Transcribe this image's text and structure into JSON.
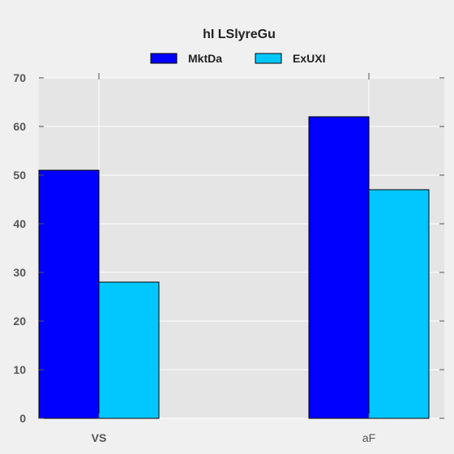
{
  "chart_data": {
    "type": "bar",
    "title": "hI LSlyreGu",
    "categories": [
      "VS",
      "aF"
    ],
    "series": [
      {
        "name": "MktDa",
        "values": [
          51,
          62
        ],
        "color": "#0000ff"
      },
      {
        "name": "ExUXI",
        "values": [
          28,
          47
        ],
        "color": "#00c8ff"
      }
    ],
    "ylim": [
      0,
      70
    ],
    "yticks": [
      0,
      10,
      20,
      30,
      40,
      50,
      60,
      70
    ],
    "xlabel": "",
    "ylabel": "",
    "grid": true,
    "legend_position": "top-center",
    "background_color": "#e5e5e5",
    "figure_color": "#f0f0f0"
  }
}
